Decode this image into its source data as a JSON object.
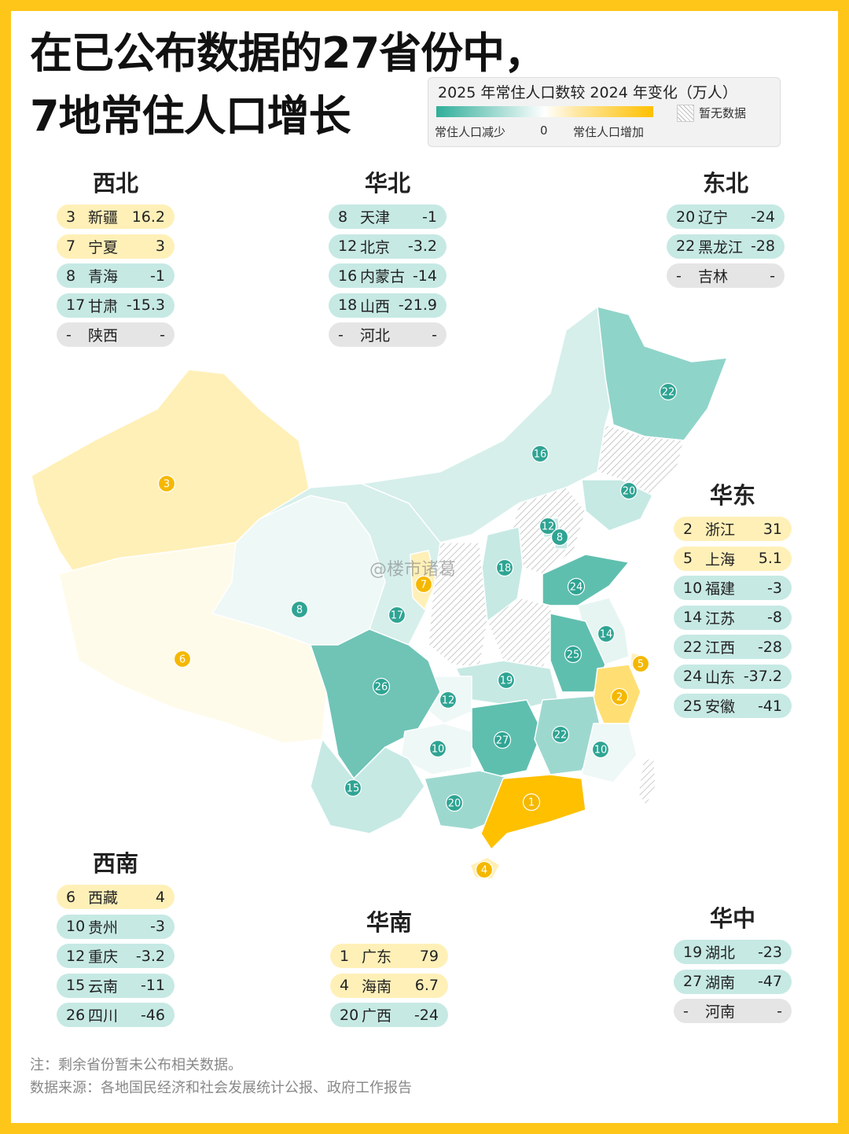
{
  "title_line1": "在已公布数据的27省份中，",
  "title_line2": "7地常住人口增长",
  "legend": {
    "title": "2025 年常住人口数较 2024 年变化（万人）",
    "no_data": "暂无数据",
    "decrease": "常住人口减少",
    "zero": "0",
    "increase": "常住人口增加",
    "colors": {
      "decrease": "#2fae9a",
      "increase": "#ffc000",
      "no_data": "#bbbbbb"
    }
  },
  "regions": [
    {
      "name": "西北",
      "items": [
        {
          "rank": "3",
          "province": "新疆",
          "value": "16.2",
          "status": "pos"
        },
        {
          "rank": "7",
          "province": "宁夏",
          "value": "3",
          "status": "pos"
        },
        {
          "rank": "8",
          "province": "青海",
          "value": "-1",
          "status": "neg"
        },
        {
          "rank": "17",
          "province": "甘肃",
          "value": "-15.3",
          "status": "neg"
        },
        {
          "rank": "-",
          "province": "陕西",
          "value": "-",
          "status": "na"
        }
      ]
    },
    {
      "name": "华北",
      "items": [
        {
          "rank": "8",
          "province": "天津",
          "value": "-1",
          "status": "neg"
        },
        {
          "rank": "12",
          "province": "北京",
          "value": "-3.2",
          "status": "neg"
        },
        {
          "rank": "16",
          "province": "内蒙古",
          "value": "-14",
          "status": "neg"
        },
        {
          "rank": "18",
          "province": "山西",
          "value": "-21.9",
          "status": "neg"
        },
        {
          "rank": "-",
          "province": "河北",
          "value": "-",
          "status": "na"
        }
      ]
    },
    {
      "name": "东北",
      "items": [
        {
          "rank": "20",
          "province": "辽宁",
          "value": "-24",
          "status": "neg"
        },
        {
          "rank": "22",
          "province": "黑龙江",
          "value": "-28",
          "status": "neg"
        },
        {
          "rank": "-",
          "province": "吉林",
          "value": "-",
          "status": "na"
        }
      ]
    },
    {
      "name": "华东",
      "items": [
        {
          "rank": "2",
          "province": "浙江",
          "value": "31",
          "status": "pos"
        },
        {
          "rank": "5",
          "province": "上海",
          "value": "5.1",
          "status": "pos"
        },
        {
          "rank": "10",
          "province": "福建",
          "value": "-3",
          "status": "neg"
        },
        {
          "rank": "14",
          "province": "江苏",
          "value": "-8",
          "status": "neg"
        },
        {
          "rank": "22",
          "province": "江西",
          "value": "-28",
          "status": "neg"
        },
        {
          "rank": "24",
          "province": "山东",
          "value": "-37.2",
          "status": "neg"
        },
        {
          "rank": "25",
          "province": "安徽",
          "value": "-41",
          "status": "neg"
        }
      ]
    },
    {
      "name": "西南",
      "items": [
        {
          "rank": "6",
          "province": "西藏",
          "value": "4",
          "status": "pos"
        },
        {
          "rank": "10",
          "province": "贵州",
          "value": "-3",
          "status": "neg"
        },
        {
          "rank": "12",
          "province": "重庆",
          "value": "-3.2",
          "status": "neg"
        },
        {
          "rank": "15",
          "province": "云南",
          "value": "-11",
          "status": "neg"
        },
        {
          "rank": "26",
          "province": "四川",
          "value": "-46",
          "status": "neg"
        }
      ]
    },
    {
      "name": "华南",
      "items": [
        {
          "rank": "1",
          "province": "广东",
          "value": "79",
          "status": "pos"
        },
        {
          "rank": "4",
          "province": "海南",
          "value": "6.7",
          "status": "pos"
        },
        {
          "rank": "20",
          "province": "广西",
          "value": "-24",
          "status": "neg"
        }
      ]
    },
    {
      "name": "华中",
      "items": [
        {
          "rank": "19",
          "province": "湖北",
          "value": "-23",
          "status": "neg"
        },
        {
          "rank": "27",
          "province": "湖南",
          "value": "-47",
          "status": "neg"
        },
        {
          "rank": "-",
          "province": "河南",
          "value": "-",
          "status": "na"
        }
      ]
    }
  ],
  "map_markers": [
    {
      "label": "3",
      "status": "pos"
    },
    {
      "label": "6",
      "status": "pos"
    },
    {
      "label": "8",
      "status": "neg"
    },
    {
      "label": "17",
      "status": "neg"
    },
    {
      "label": "7",
      "status": "pos"
    },
    {
      "label": "16",
      "status": "neg"
    },
    {
      "label": "22",
      "status": "neg"
    },
    {
      "label": "20",
      "status": "neg"
    },
    {
      "label": "12",
      "status": "neg"
    },
    {
      "label": "8",
      "status": "neg"
    },
    {
      "label": "18",
      "status": "neg"
    },
    {
      "label": "24",
      "status": "neg"
    },
    {
      "label": "14",
      "status": "neg"
    },
    {
      "label": "25",
      "status": "neg"
    },
    {
      "label": "5",
      "status": "pos"
    },
    {
      "label": "26",
      "status": "neg"
    },
    {
      "label": "19",
      "status": "neg"
    },
    {
      "label": "12",
      "status": "neg"
    },
    {
      "label": "2",
      "status": "pos"
    },
    {
      "label": "10",
      "status": "neg"
    },
    {
      "label": "27",
      "status": "neg"
    },
    {
      "label": "22",
      "status": "neg"
    },
    {
      "label": "10",
      "status": "neg"
    },
    {
      "label": "15",
      "status": "neg"
    },
    {
      "label": "20",
      "status": "neg"
    },
    {
      "label": "1",
      "status": "pos"
    },
    {
      "label": "4",
      "status": "pos"
    }
  ],
  "watermark": "@楼市诸葛",
  "note": "注：剩余省份暂未公布相关数据。",
  "source": "数据来源：各地国民经济和社会发展统计公报、政府工作报告"
}
